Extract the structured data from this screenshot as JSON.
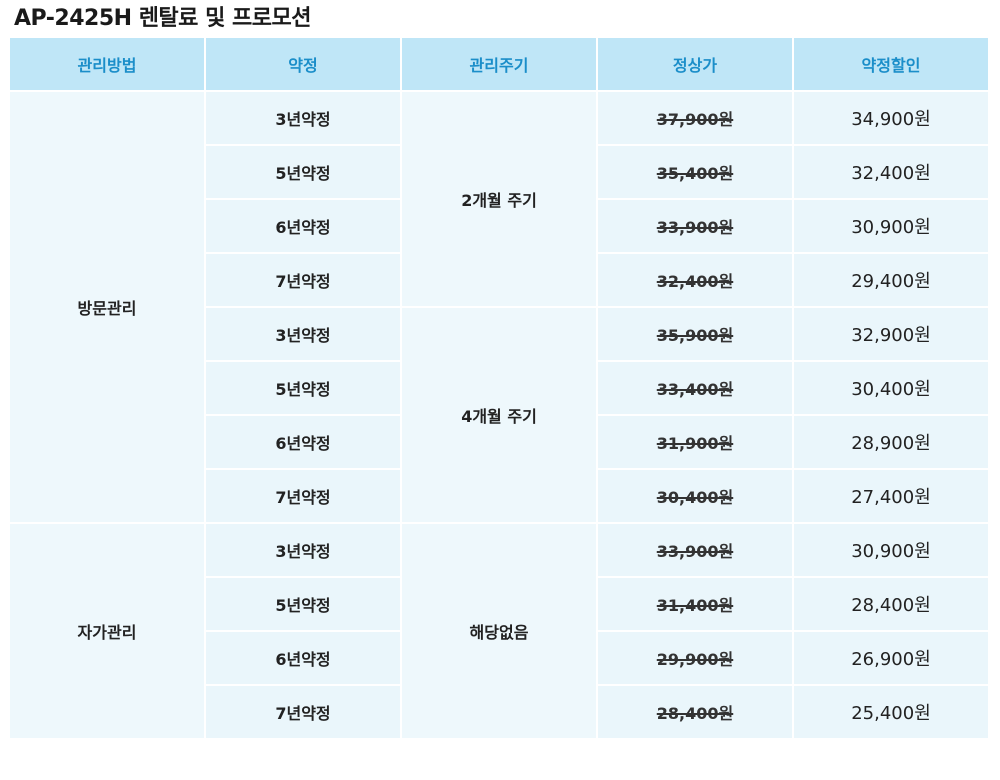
{
  "title": "AP-2425H 렌탈료 및 프로모션",
  "headers": [
    "관리방법",
    "약정",
    "관리주기",
    "정상가",
    "약정할인"
  ],
  "rows": [
    {
      "contract": "3년약정",
      "regular": "37,900원",
      "discount": "34,900원"
    },
    {
      "contract": "5년약정",
      "regular": "35,400원",
      "discount": "32,400원"
    },
    {
      "contract": "6년약정",
      "regular": "33,900원",
      "discount": "30,900원"
    },
    {
      "contract": "7년약정",
      "regular": "32,400원",
      "discount": "29,400원"
    },
    {
      "contract": "3년약정",
      "regular": "35,900원",
      "discount": "32,900원"
    },
    {
      "contract": "5년약정",
      "regular": "33,400원",
      "discount": "30,400원"
    },
    {
      "contract": "6년약정",
      "regular": "31,900원",
      "discount": "28,900원"
    },
    {
      "contract": "7년약정",
      "regular": "30,400원",
      "discount": "27,400원"
    },
    {
      "contract": "3년약정",
      "regular": "33,900원",
      "discount": "30,900원"
    },
    {
      "contract": "5년약정",
      "regular": "31,400원",
      "discount": "28,400원"
    },
    {
      "contract": "6년약정",
      "regular": "29,900원",
      "discount": "26,900원"
    },
    {
      "contract": "7년약정",
      "regular": "28,400원",
      "discount": "25,400원"
    }
  ],
  "methods": [
    "방문관리",
    "자가관리"
  ],
  "cycles": [
    "2개월 주기",
    "4개월 주기",
    "해당없음"
  ]
}
